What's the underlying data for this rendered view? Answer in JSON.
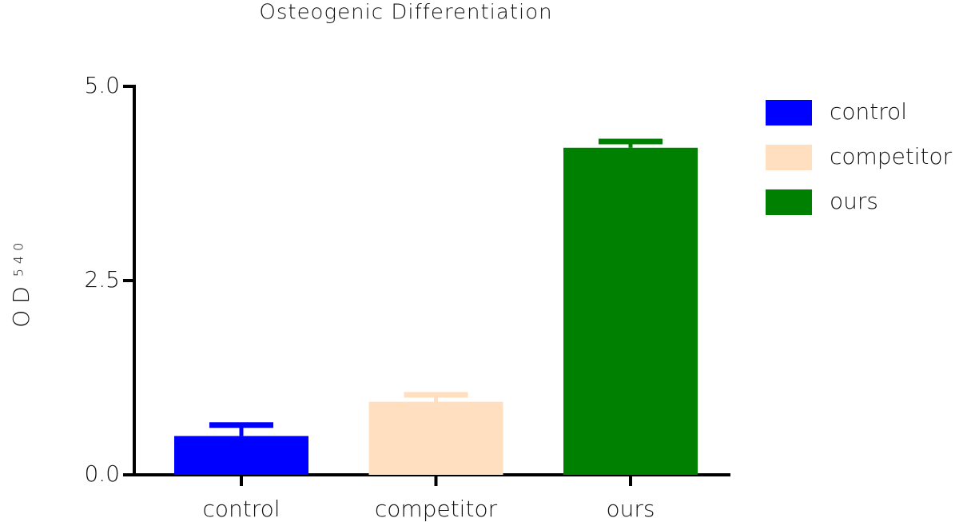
{
  "chart_data": {
    "type": "bar",
    "title": "Osteogenic Differentiation",
    "ylabel": "OD",
    "ylabel_subscript": "540",
    "categories": [
      "control",
      "competitor",
      "ours"
    ],
    "series": [
      {
        "name": "control",
        "color": "#0000ff",
        "value": 0.5,
        "error": 0.14
      },
      {
        "name": "competitor",
        "color": "#ffdfc0",
        "value": 0.94,
        "error": 0.09
      },
      {
        "name": "ours",
        "color": "#008000",
        "value": 4.21,
        "error": 0.08
      }
    ],
    "ylim": [
      0,
      5
    ],
    "yticks": [
      {
        "value": 0,
        "label": "0.0"
      },
      {
        "value": 2.5,
        "label": "2.5"
      },
      {
        "value": 5,
        "label": "5.0"
      }
    ],
    "legend": "right"
  }
}
